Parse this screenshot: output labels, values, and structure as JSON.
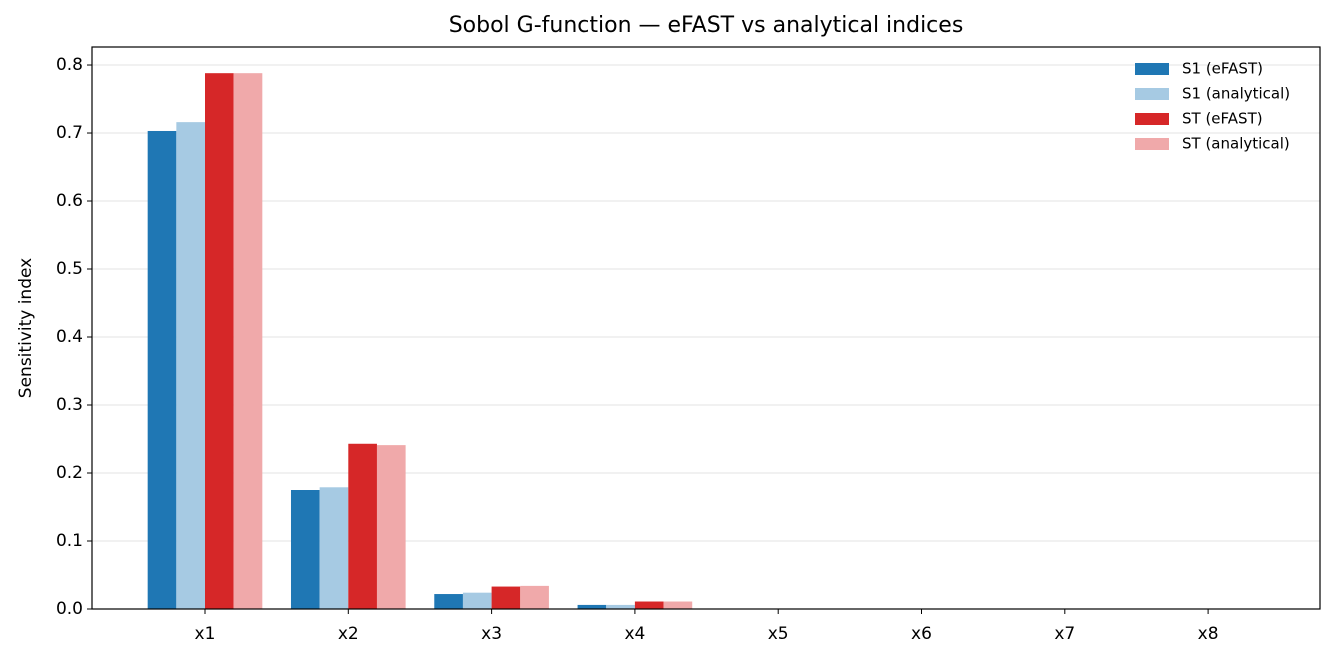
{
  "chart_data": {
    "type": "bar",
    "title": "Sobol G-function — eFAST vs analytical indices",
    "y_label": "Sensitivity index",
    "categories": [
      "x1",
      "x2",
      "x3",
      "x4",
      "x5",
      "x6",
      "x7",
      "x8"
    ],
    "series": [
      {
        "name": "S1 (eFAST)",
        "color": "#1f77b4",
        "values": [
          0.703,
          0.175,
          0.022,
          0.006,
          0.0,
          0.0,
          0.0,
          0.0
        ]
      },
      {
        "name": "S1 (analytical)",
        "color": "#a6cae3",
        "values": [
          0.716,
          0.179,
          0.024,
          0.006,
          0.0,
          0.0,
          0.0,
          0.0
        ]
      },
      {
        "name": "ST (eFAST)",
        "color": "#d62728",
        "values": [
          0.788,
          0.243,
          0.033,
          0.011,
          0.0,
          0.0,
          0.0,
          0.0
        ]
      },
      {
        "name": "ST (analytical)",
        "color": "#f0a9aa",
        "values": [
          0.788,
          0.241,
          0.034,
          0.011,
          0.0,
          0.0,
          0.0,
          0.0
        ]
      }
    ],
    "ylim": [
      0,
      0.8265
    ],
    "yticks": [
      {
        "value": 0,
        "label": "0.0"
      },
      0.1,
      0.2,
      0.3,
      0.4,
      0.5,
      0.6,
      0.7,
      0.8
    ],
    "grid": true,
    "legend": "upper right"
  }
}
